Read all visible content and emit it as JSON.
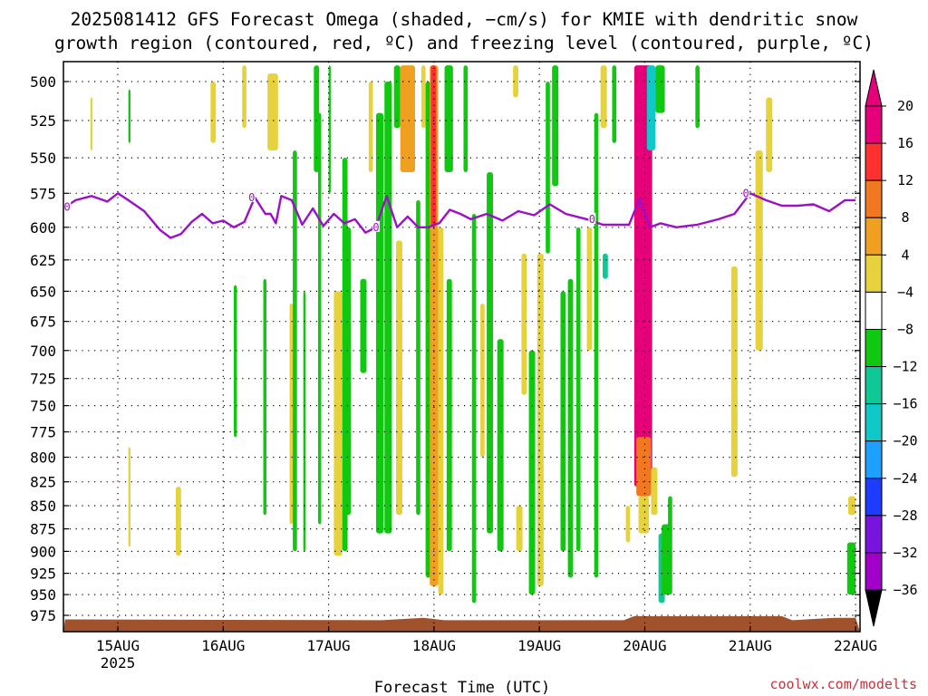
{
  "title_line1": "2025081412 GFS Forecast Omega (shaded, −cm/s) for KMIE with dendritic snow",
  "title_line2": "growth region (contoured, red, ºC) and freezing level (contoured, purple, ºC)",
  "credit": "coolwx.com/modelts",
  "colors": {
    "frame": "#000000",
    "grid": "#000000",
    "freezing_line": "#9b10c8",
    "terrain": "#a0522d"
  },
  "chart_data": {
    "type": "heatmap",
    "xlabel": "Forecast Time (UTC)",
    "ylabel": "",
    "x_ticks": [
      {
        "t": 1,
        "label": "15AUG",
        "sub": "2025"
      },
      {
        "t": 2,
        "label": "16AUG",
        "sub": ""
      },
      {
        "t": 3,
        "label": "17AUG",
        "sub": ""
      },
      {
        "t": 4,
        "label": "18AUG",
        "sub": ""
      },
      {
        "t": 5,
        "label": "19AUG",
        "sub": ""
      },
      {
        "t": 6,
        "label": "20AUG",
        "sub": ""
      },
      {
        "t": 7,
        "label": "21AUG",
        "sub": ""
      },
      {
        "t": 8,
        "label": "22AUG",
        "sub": ""
      }
    ],
    "xlim_days": [
      0.5,
      8
    ],
    "y_ticks": [
      500,
      525,
      550,
      575,
      600,
      625,
      650,
      675,
      700,
      725,
      750,
      775,
      800,
      825,
      850,
      875,
      900,
      925,
      950,
      975
    ],
    "ylim_hpa": [
      490,
      990
    ],
    "y_scale": "log",
    "grid": true,
    "colorbar": {
      "labels": [
        "20",
        "16",
        "12",
        "8",
        "4",
        "−4",
        "−8",
        "−12",
        "−16",
        "−20",
        "−24",
        "−28",
        "−32",
        "−36"
      ],
      "colors": [
        "#e6007a",
        "#ff3030",
        "#f07820",
        "#f0a020",
        "#e6d23c",
        "#ffffff",
        "#10c810",
        "#10c896",
        "#10c8c8",
        "#1ea0ff",
        "#1e3cff",
        "#7814dc",
        "#a000c8",
        "#a0a0a0"
      ],
      "top_arrow": "#e6007a",
      "bottom_arrow": "#000000"
    },
    "freezing_level": {
      "label": "0",
      "t": [
        0.5,
        0.6,
        0.75,
        0.9,
        1.0,
        1.1,
        1.25,
        1.4,
        1.5,
        1.6,
        1.7,
        1.8,
        1.9,
        2.0,
        2.1,
        2.2,
        2.3,
        2.4,
        2.45,
        2.5,
        2.55,
        2.65,
        2.75,
        2.85,
        2.95,
        3.05,
        3.15,
        3.25,
        3.35,
        3.45,
        3.55,
        3.65,
        3.75,
        3.85,
        3.95,
        4.0,
        4.05,
        4.15,
        4.25,
        4.35,
        4.5,
        4.65,
        4.8,
        4.95,
        5.1,
        5.25,
        5.45,
        5.6,
        5.7,
        5.85,
        5.95,
        6.05,
        6.15,
        6.3,
        6.5,
        6.7,
        6.85,
        7.0,
        7.15,
        7.3,
        7.45,
        7.6,
        7.75,
        7.9,
        8.0
      ],
      "hpa": [
        585,
        580,
        577,
        581,
        575,
        580,
        588,
        602,
        608,
        605,
        596,
        590,
        597,
        595,
        600,
        596,
        578,
        590,
        590,
        597,
        577,
        580,
        598,
        586,
        599,
        590,
        597,
        594,
        604,
        600,
        577,
        600,
        592,
        600,
        600,
        598,
        597,
        587,
        590,
        594,
        590,
        595,
        588,
        591,
        583,
        590,
        594,
        598,
        598,
        598,
        579,
        600,
        597,
        600,
        598,
        594,
        590,
        575,
        580,
        584,
        584,
        583,
        588,
        580,
        580
      ]
    },
    "omega_cells": [
      {
        "t0": 0.74,
        "t1": 0.76,
        "p0": 510,
        "p1": 545,
        "v": 5
      },
      {
        "t0": 1.1,
        "t1": 1.12,
        "p0": 505,
        "p1": 540,
        "v": -6
      },
      {
        "t0": 1.1,
        "t1": 1.12,
        "p0": 790,
        "p1": 895,
        "v": 5
      },
      {
        "t0": 1.55,
        "t1": 1.6,
        "p0": 830,
        "p1": 905,
        "v": 5
      },
      {
        "t0": 1.88,
        "t1": 1.93,
        "p0": 500,
        "p1": 540,
        "v": 5
      },
      {
        "t0": 2.1,
        "t1": 2.13,
        "p0": 645,
        "p1": 780,
        "v": -6
      },
      {
        "t0": 2.18,
        "t1": 2.22,
        "p0": 490,
        "p1": 530,
        "v": 5
      },
      {
        "t0": 2.38,
        "t1": 2.41,
        "p0": 640,
        "p1": 860,
        "v": -6
      },
      {
        "t0": 2.42,
        "t1": 2.52,
        "p0": 495,
        "p1": 545,
        "v": 5
      },
      {
        "t0": 2.63,
        "t1": 2.66,
        "p0": 660,
        "p1": 870,
        "v": 5
      },
      {
        "t0": 2.66,
        "t1": 2.7,
        "p0": 545,
        "p1": 900,
        "v": -6
      },
      {
        "t0": 2.76,
        "t1": 2.78,
        "p0": 650,
        "p1": 900,
        "v": -6
      },
      {
        "t0": 2.86,
        "t1": 2.91,
        "p0": 490,
        "p1": 560,
        "v": -6
      },
      {
        "t0": 2.9,
        "t1": 2.93,
        "p0": 520,
        "p1": 870,
        "v": -6
      },
      {
        "t0": 3.0,
        "t1": 3.02,
        "p0": 490,
        "p1": 575,
        "v": -6
      },
      {
        "t0": 3.05,
        "t1": 3.13,
        "p0": 650,
        "p1": 905,
        "v": 5
      },
      {
        "t0": 3.13,
        "t1": 3.18,
        "p0": 550,
        "p1": 900,
        "v": -6
      },
      {
        "t0": 3.17,
        "t1": 3.21,
        "p0": 600,
        "p1": 860,
        "v": -6
      },
      {
        "t0": 3.3,
        "t1": 3.36,
        "p0": 640,
        "p1": 720,
        "v": -6
      },
      {
        "t0": 3.38,
        "t1": 3.42,
        "p0": 500,
        "p1": 560,
        "v": 5
      },
      {
        "t0": 3.45,
        "t1": 3.52,
        "p0": 520,
        "p1": 880,
        "v": -6
      },
      {
        "t0": 3.53,
        "t1": 3.6,
        "p0": 500,
        "p1": 880,
        "v": -6
      },
      {
        "t0": 3.62,
        "t1": 3.68,
        "p0": 490,
        "p1": 530,
        "v": -6
      },
      {
        "t0": 3.64,
        "t1": 3.7,
        "p0": 610,
        "p1": 860,
        "v": 5
      },
      {
        "t0": 3.68,
        "t1": 3.82,
        "p0": 490,
        "p1": 560,
        "v": 10
      },
      {
        "t0": 3.83,
        "t1": 3.87,
        "p0": 580,
        "p1": 860,
        "v": -6
      },
      {
        "t0": 3.88,
        "t1": 3.92,
        "p0": 490,
        "p1": 530,
        "v": 5
      },
      {
        "t0": 3.92,
        "t1": 3.97,
        "p0": 500,
        "p1": 930,
        "v": -6
      },
      {
        "t0": 3.96,
        "t1": 4.04,
        "p0": 490,
        "p1": 940,
        "v": 9
      },
      {
        "t0": 3.97,
        "t1": 4.02,
        "p0": 490,
        "p1": 600,
        "v": 18
      },
      {
        "t0": 4.04,
        "t1": 4.09,
        "p0": 600,
        "p1": 950,
        "v": 6
      },
      {
        "t0": 4.1,
        "t1": 4.18,
        "p0": 490,
        "p1": 560,
        "v": -6
      },
      {
        "t0": 4.12,
        "t1": 4.17,
        "p0": 640,
        "p1": 900,
        "v": -6
      },
      {
        "t0": 4.28,
        "t1": 4.32,
        "p0": 490,
        "p1": 560,
        "v": -6
      },
      {
        "t0": 4.36,
        "t1": 4.4,
        "p0": 590,
        "p1": 960,
        "v": -6
      },
      {
        "t0": 4.44,
        "t1": 4.48,
        "p0": 660,
        "p1": 800,
        "v": 5
      },
      {
        "t0": 4.5,
        "t1": 4.56,
        "p0": 560,
        "p1": 880,
        "v": -6
      },
      {
        "t0": 4.6,
        "t1": 4.66,
        "p0": 690,
        "p1": 900,
        "v": -6
      },
      {
        "t0": 4.75,
        "t1": 4.8,
        "p0": 490,
        "p1": 510,
        "v": 5
      },
      {
        "t0": 4.78,
        "t1": 4.84,
        "p0": 850,
        "p1": 900,
        "v": 5
      },
      {
        "t0": 4.83,
        "t1": 4.88,
        "p0": 620,
        "p1": 740,
        "v": 5
      },
      {
        "t0": 4.9,
        "t1": 4.96,
        "p0": 700,
        "p1": 950,
        "v": -6
      },
      {
        "t0": 4.98,
        "t1": 5.04,
        "p0": 620,
        "p1": 940,
        "v": 5
      },
      {
        "t0": 5.06,
        "t1": 5.1,
        "p0": 500,
        "p1": 620,
        "v": -6
      },
      {
        "t0": 5.12,
        "t1": 5.18,
        "p0": 490,
        "p1": 570,
        "v": -6
      },
      {
        "t0": 5.2,
        "t1": 5.25,
        "p0": 650,
        "p1": 900,
        "v": -6
      },
      {
        "t0": 5.27,
        "t1": 5.32,
        "p0": 640,
        "p1": 930,
        "v": -6
      },
      {
        "t0": 5.35,
        "t1": 5.39,
        "p0": 600,
        "p1": 900,
        "v": -6
      },
      {
        "t0": 5.45,
        "t1": 5.5,
        "p0": 600,
        "p1": 700,
        "v": 5
      },
      {
        "t0": 5.52,
        "t1": 5.56,
        "p0": 520,
        "p1": 930,
        "v": -6
      },
      {
        "t0": 5.58,
        "t1": 5.64,
        "p0": 490,
        "p1": 530,
        "v": 5
      },
      {
        "t0": 5.6,
        "t1": 5.65,
        "p0": 620,
        "p1": 640,
        "v": -9
      },
      {
        "t0": 5.69,
        "t1": 5.73,
        "p0": 490,
        "p1": 540,
        "v": -6
      },
      {
        "t0": 5.82,
        "t1": 5.86,
        "p0": 850,
        "p1": 890,
        "v": 5
      },
      {
        "t0": 5.9,
        "t1": 6.07,
        "p0": 490,
        "p1": 830,
        "v": 21
      },
      {
        "t0": 5.92,
        "t1": 6.06,
        "p0": 780,
        "p1": 840,
        "v": 14
      },
      {
        "t0": 5.94,
        "t1": 6.04,
        "p0": 840,
        "p1": 880,
        "v": 6
      },
      {
        "t0": 6.02,
        "t1": 6.1,
        "p0": 490,
        "p1": 545,
        "v": -14
      },
      {
        "t0": 6.06,
        "t1": 6.12,
        "p0": 810,
        "p1": 860,
        "v": 5
      },
      {
        "t0": 6.1,
        "t1": 6.19,
        "p0": 490,
        "p1": 520,
        "v": -6
      },
      {
        "t0": 6.13,
        "t1": 6.19,
        "p0": 880,
        "p1": 960,
        "v": -9
      },
      {
        "t0": 6.16,
        "t1": 6.26,
        "p0": 870,
        "p1": 950,
        "v": -6
      },
      {
        "t0": 6.22,
        "t1": 6.26,
        "p0": 840,
        "p1": 880,
        "v": -6
      },
      {
        "t0": 6.48,
        "t1": 6.52,
        "p0": 490,
        "p1": 530,
        "v": -6
      },
      {
        "t0": 6.82,
        "t1": 6.88,
        "p0": 630,
        "p1": 820,
        "v": 5
      },
      {
        "t0": 7.05,
        "t1": 7.12,
        "p0": 545,
        "p1": 700,
        "v": 5
      },
      {
        "t0": 7.15,
        "t1": 7.21,
        "p0": 510,
        "p1": 560,
        "v": 5
      },
      {
        "t0": 7.93,
        "t1": 8.0,
        "p0": 840,
        "p1": 860,
        "v": 5
      },
      {
        "t0": 7.92,
        "t1": 8.0,
        "p0": 890,
        "p1": 950,
        "v": -6
      }
    ],
    "terrain_hpa": [
      {
        "t": 0.5,
        "p": 980
      },
      {
        "t": 3.5,
        "p": 981
      },
      {
        "t": 3.9,
        "p": 978
      },
      {
        "t": 4.1,
        "p": 981
      },
      {
        "t": 5.8,
        "p": 981
      },
      {
        "t": 5.9,
        "p": 976
      },
      {
        "t": 7.3,
        "p": 976
      },
      {
        "t": 7.4,
        "p": 981
      },
      {
        "t": 7.8,
        "p": 978
      },
      {
        "t": 8.0,
        "p": 978
      }
    ]
  }
}
